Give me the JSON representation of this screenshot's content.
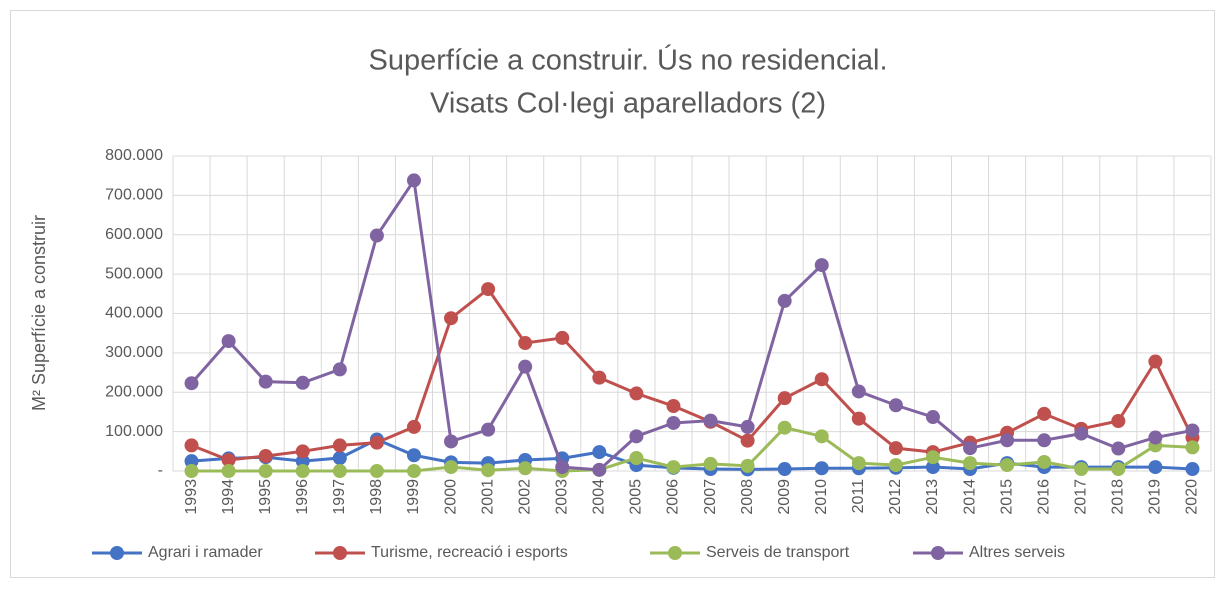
{
  "chart_data": {
    "type": "line",
    "title": "Superfície a construir. Ús no residencial.",
    "subtitle": "Visats Col·legi aparelladors (2)",
    "y_label": "M²  Superfície a construir",
    "categories": [
      "1993",
      "1994",
      "1995",
      "1996",
      "1997",
      "1998",
      "1999",
      "2000",
      "2001",
      "2002",
      "2003",
      "2004",
      "2005",
      "2006",
      "2007",
      "2008",
      "2009",
      "2010",
      "2011",
      "2012",
      "2013",
      "2014",
      "2015",
      "2016",
      "2017",
      "2018",
      "2019",
      "2020"
    ],
    "series": [
      {
        "name": "Agrari i ramader",
        "color": "#4472c4",
        "values": [
          25000,
          32000,
          35000,
          25000,
          33000,
          80000,
          40000,
          22000,
          20000,
          28000,
          32000,
          48000,
          15000,
          8000,
          5000,
          4000,
          5000,
          7000,
          7000,
          8000,
          10000,
          5000,
          20000,
          10000,
          10000,
          10000,
          10000,
          5000
        ]
      },
      {
        "name": "Turisme, recreació i esports",
        "color": "#c0504d",
        "values": [
          65000,
          28000,
          38000,
          50000,
          65000,
          72000,
          112000,
          388000,
          462000,
          325000,
          338000,
          237000,
          197000,
          165000,
          125000,
          77000,
          185000,
          233000,
          133000,
          58000,
          48000,
          72000,
          97000,
          145000,
          107000,
          127000,
          278000,
          85000
        ]
      },
      {
        "name": "Serveis de transport",
        "color": "#9bbb59",
        "values": [
          0,
          0,
          0,
          0,
          0,
          0,
          0,
          10000,
          2000,
          7000,
          0,
          3000,
          33000,
          10000,
          18000,
          13000,
          110000,
          88000,
          20000,
          15000,
          35000,
          20000,
          15000,
          23000,
          5000,
          5000,
          65000,
          60000
        ]
      },
      {
        "name": "Altres serveis",
        "color": "#8064a2",
        "values": [
          223000,
          330000,
          227000,
          224000,
          258000,
          598000,
          738000,
          75000,
          105000,
          265000,
          10000,
          3000,
          88000,
          122000,
          128000,
          112000,
          432000,
          523000,
          202000,
          167000,
          137000,
          58000,
          78000,
          78000,
          95000,
          57000,
          85000,
          103000
        ]
      }
    ],
    "ylim": [
      0,
      800000
    ],
    "yticks": [
      {
        "value": 0,
        "label": "-"
      },
      {
        "value": 100000,
        "label": "100.000"
      },
      {
        "value": 200000,
        "label": "200.000"
      },
      {
        "value": 300000,
        "label": "300.000"
      },
      {
        "value": 400000,
        "label": "400.000"
      },
      {
        "value": 500000,
        "label": "500.000"
      },
      {
        "value": 600000,
        "label": "600.000"
      },
      {
        "value": 700000,
        "label": "700.000"
      },
      {
        "value": 800000,
        "label": "800.000"
      }
    ],
    "grid": true,
    "legend": "bottom"
  }
}
